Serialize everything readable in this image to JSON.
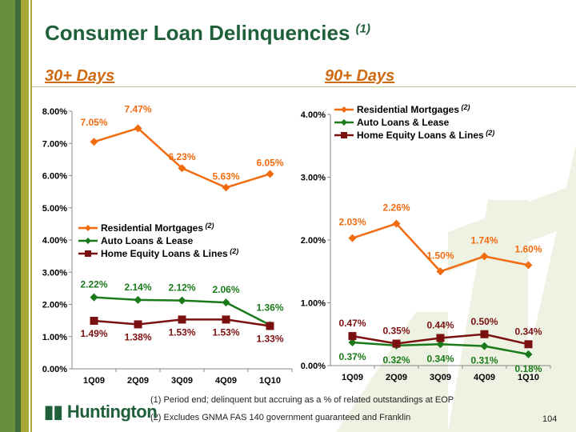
{
  "title": "Consumer Loan Delinquencies",
  "title_note": "(1)",
  "colors": {
    "residential": "#f26b0f",
    "auto": "#1a7a1a",
    "home_equity": "#7a1010",
    "title": "#1f5f3a",
    "subtitle": "#d06a10"
  },
  "chart_data": [
    {
      "type": "line",
      "title": "30+ Days",
      "categories": [
        "1Q09",
        "2Q09",
        "3Q09",
        "4Q09",
        "1Q10"
      ],
      "ylim": [
        0,
        8
      ],
      "yticks": [
        "0.00%",
        "1.00%",
        "2.00%",
        "3.00%",
        "4.00%",
        "5.00%",
        "6.00%",
        "7.00%",
        "8.00%"
      ],
      "legend": "center",
      "series": [
        {
          "name": "Residential Mortgages",
          "note": "(2)",
          "marker": "diamond",
          "values": [
            7.05,
            7.47,
            6.23,
            5.63,
            6.05
          ],
          "labels": [
            "7.05%",
            "7.47%",
            "6.23%",
            "5.63%",
            "6.05%"
          ]
        },
        {
          "name": "Auto Loans & Lease",
          "note": "",
          "marker": "diamond",
          "values": [
            2.22,
            2.14,
            2.12,
            2.06,
            1.36
          ],
          "labels": [
            "2.22%",
            "2.14%",
            "2.12%",
            "2.06%",
            "1.36%"
          ]
        },
        {
          "name": "Home Equity Loans & Lines",
          "note": "(2)",
          "marker": "square",
          "values": [
            1.49,
            1.38,
            1.53,
            1.53,
            1.33
          ],
          "labels": [
            "1.49%",
            "1.38%",
            "1.53%",
            "1.53%",
            "1.33%"
          ]
        }
      ]
    },
    {
      "type": "line",
      "title": "90+ Days",
      "categories": [
        "1Q09",
        "2Q09",
        "3Q09",
        "4Q09",
        "1Q10"
      ],
      "ylim": [
        0,
        4
      ],
      "yticks": [
        "0.00%",
        "1.00%",
        "2.00%",
        "3.00%",
        "4.00%"
      ],
      "legend": "top-left",
      "series": [
        {
          "name": "Residential Mortgages",
          "note": "(2)",
          "marker": "diamond",
          "values": [
            2.03,
            2.26,
            1.5,
            1.74,
            1.6
          ],
          "labels": [
            "2.03%",
            "2.26%",
            "1.50%",
            "1.74%",
            "1.60%"
          ]
        },
        {
          "name": "Auto Loans & Lease",
          "note": "",
          "marker": "diamond",
          "values": [
            0.37,
            0.32,
            0.34,
            0.31,
            0.18
          ],
          "labels": [
            "0.37%",
            "0.32%",
            "0.34%",
            "0.31%",
            "0.18%"
          ]
        },
        {
          "name": "Home Equity Loans & Lines",
          "note": "(2)",
          "marker": "square",
          "values": [
            0.47,
            0.35,
            0.44,
            0.5,
            0.34
          ],
          "labels": [
            "0.47%",
            "0.35%",
            "0.44%",
            "0.50%",
            "0.34%"
          ]
        }
      ]
    }
  ],
  "footnotes": [
    "(1)  Period end; delinquent but accruing as a % of related outstandings at EOP",
    "(2)  Excludes GNMA FAS 140 government guaranteed and Franklin"
  ],
  "logo": "Huntington",
  "page_number": "104"
}
